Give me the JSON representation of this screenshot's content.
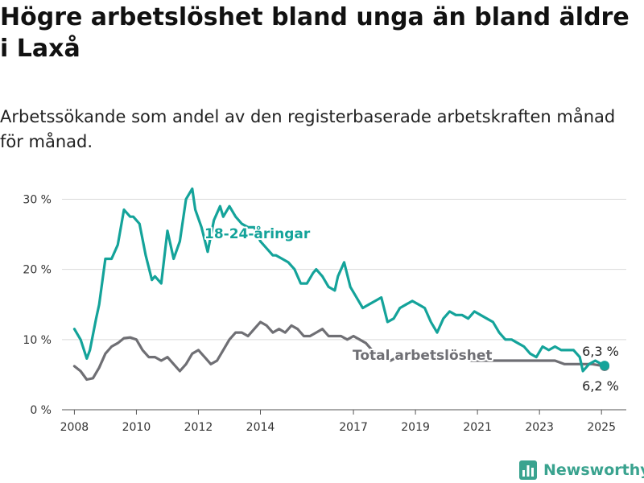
{
  "header": {
    "title": "Högre arbetslöshet bland unga än bland äldre i Laxå",
    "subtitle": "Arbetssökande som andel av den registerbaserade arbetskraften månad för månad."
  },
  "brand": {
    "name": "Newsworthy",
    "icon": "bar-chart-logo-icon",
    "color": "#3aa38f"
  },
  "chart_data": {
    "type": "line",
    "title": "Högre arbetslöshet bland unga än bland äldre i Laxå",
    "subtitle": "Arbetssökande som andel av den registerbaserade arbetskraften månad för månad.",
    "xlabel": "",
    "ylabel": "",
    "xlim": [
      2007.6,
      2025.8
    ],
    "ylim": [
      0,
      32
    ],
    "x_ticks": [
      2008,
      2010,
      2012,
      2014,
      2017,
      2019,
      2021,
      2023,
      2025
    ],
    "x_tick_labels": [
      "2008",
      "2010",
      "2012",
      "2014",
      "2017",
      "2019",
      "2021",
      "2023",
      "2025"
    ],
    "y_ticks": [
      0,
      10,
      20,
      30
    ],
    "y_tick_labels": [
      "0 %",
      "10 %",
      "20 %",
      "30 %"
    ],
    "grid": "horizontal",
    "legend": "inline labels",
    "series": [
      {
        "name": "18-24-åringar",
        "color": "#14a39a",
        "x": [
          2008.0,
          2008.2,
          2008.4,
          2008.5,
          2008.7,
          2008.8,
          2009.0,
          2009.2,
          2009.4,
          2009.6,
          2009.8,
          2009.9,
          2010.1,
          2010.3,
          2010.5,
          2010.6,
          2010.8,
          2011.0,
          2011.2,
          2011.4,
          2011.6,
          2011.8,
          2011.9,
          2012.1,
          2012.3,
          2012.5,
          2012.7,
          2012.8,
          2013.0,
          2013.2,
          2013.4,
          2013.6,
          2013.8,
          2014.0,
          2014.2,
          2014.4,
          2014.5,
          2014.7,
          2014.9,
          2015.1,
          2015.3,
          2015.5,
          2015.7,
          2015.8,
          2016.0,
          2016.2,
          2016.4,
          2016.5,
          2016.7,
          2016.9,
          2017.1,
          2017.3,
          2017.5,
          2017.7,
          2017.9,
          2018.1,
          2018.3,
          2018.5,
          2018.7,
          2018.9,
          2019.1,
          2019.3,
          2019.5,
          2019.7,
          2019.9,
          2020.1,
          2020.3,
          2020.5,
          2020.7,
          2020.9,
          2021.1,
          2021.3,
          2021.5,
          2021.7,
          2021.9,
          2022.1,
          2022.3,
          2022.5,
          2022.7,
          2022.9,
          2023.1,
          2023.3,
          2023.5,
          2023.7,
          2023.9,
          2024.1,
          2024.3,
          2024.4,
          2024.6,
          2024.8,
          2025.0,
          2025.1
        ],
        "y": [
          11.5,
          10.0,
          7.3,
          8.5,
          13.0,
          15.0,
          21.5,
          21.5,
          23.5,
          28.5,
          27.5,
          27.5,
          26.5,
          22.0,
          18.5,
          19.0,
          18.0,
          25.5,
          21.5,
          24.0,
          30.0,
          31.5,
          28.5,
          26.0,
          22.5,
          27.0,
          29.0,
          27.5,
          29.0,
          27.5,
          26.5,
          26.0,
          26.0,
          24.0,
          23.0,
          22.0,
          22.0,
          21.5,
          21.0,
          20.0,
          18.0,
          18.0,
          19.5,
          20.0,
          19.0,
          17.5,
          17.0,
          19.0,
          21.0,
          17.5,
          16.0,
          14.5,
          15.0,
          15.5,
          16.0,
          12.5,
          13.0,
          14.5,
          15.0,
          15.5,
          15.0,
          14.5,
          12.5,
          11.0,
          13.0,
          14.0,
          13.5,
          13.5,
          13.0,
          14.0,
          13.5,
          13.0,
          12.5,
          11.0,
          10.0,
          10.0,
          9.5,
          9.0,
          8.0,
          7.5,
          9.0,
          8.5,
          9.0,
          8.5,
          8.5,
          8.5,
          7.5,
          5.5,
          6.5,
          7.0,
          6.5,
          6.3
        ]
      },
      {
        "name": "Total arbetslöshet",
        "color": "#6f6f74",
        "x": [
          2008.0,
          2008.2,
          2008.4,
          2008.6,
          2008.8,
          2009.0,
          2009.2,
          2009.4,
          2009.6,
          2009.8,
          2010.0,
          2010.2,
          2010.4,
          2010.6,
          2010.8,
          2011.0,
          2011.2,
          2011.4,
          2011.6,
          2011.8,
          2012.0,
          2012.2,
          2012.4,
          2012.6,
          2012.8,
          2013.0,
          2013.2,
          2013.4,
          2013.6,
          2013.8,
          2014.0,
          2014.2,
          2014.4,
          2014.6,
          2014.8,
          2015.0,
          2015.2,
          2015.4,
          2015.6,
          2015.8,
          2016.0,
          2016.2,
          2016.4,
          2016.6,
          2016.8,
          2017.0,
          2017.2,
          2017.4,
          2017.6,
          2017.8,
          2018.0,
          2018.2,
          2018.4,
          2018.6,
          2018.8,
          2019.0,
          2019.3,
          2019.6,
          2019.9,
          2020.2,
          2020.5,
          2020.8,
          2021.1,
          2021.4,
          2021.7,
          2022.0,
          2022.3,
          2022.6,
          2022.9,
          2023.2,
          2023.5,
          2023.8,
          2024.1,
          2024.4,
          2024.7,
          2025.1
        ],
        "y": [
          6.2,
          5.5,
          4.3,
          4.5,
          6.0,
          8.0,
          9.0,
          9.5,
          10.2,
          10.3,
          10.0,
          8.5,
          7.5,
          7.5,
          7.0,
          7.5,
          6.5,
          5.5,
          6.5,
          8.0,
          8.5,
          7.5,
          6.5,
          7.0,
          8.5,
          10.0,
          11.0,
          11.0,
          10.5,
          11.5,
          12.5,
          12.0,
          11.0,
          11.5,
          11.0,
          12.0,
          11.5,
          10.5,
          10.5,
          11.0,
          11.5,
          10.5,
          10.5,
          10.5,
          10.0,
          10.5,
          10.0,
          9.5,
          8.5,
          8.0,
          7.5,
          7.0,
          7.5,
          8.0,
          8.0,
          7.5,
          7.5,
          7.5,
          7.5,
          7.5,
          7.5,
          7.0,
          7.0,
          7.0,
          7.0,
          7.0,
          7.0,
          7.0,
          7.0,
          7.0,
          7.0,
          6.5,
          6.5,
          6.5,
          6.5,
          6.2
        ]
      }
    ],
    "annotations": [
      {
        "text": "18-24-åringar",
        "series": 0
      },
      {
        "text": "Total arbetslöshet",
        "series": 1
      },
      {
        "text": "6,3 %",
        "series": 0
      },
      {
        "text": "6,2 %",
        "series": 1
      }
    ]
  }
}
